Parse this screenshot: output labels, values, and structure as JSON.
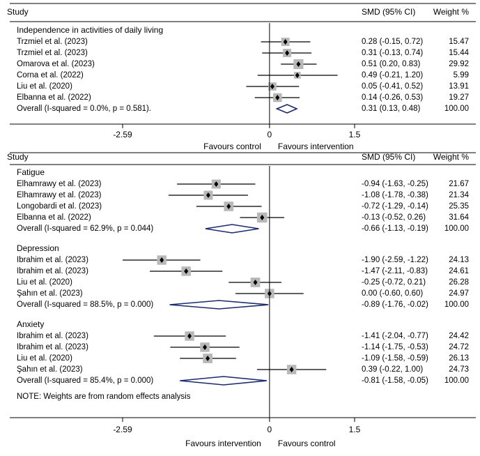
{
  "chart_data": [
    {
      "type": "forest",
      "axis": {
        "ticks": [
          -2.59,
          0,
          1.5
        ],
        "tick_labels": [
          "-2.59",
          "0",
          "1.5"
        ],
        "xlim": [
          -2.59,
          1.5
        ],
        "left_label": "Favours control",
        "right_label": "Favours intervention"
      },
      "header": {
        "study": "Study",
        "smd": "SMD (95% CI)",
        "weight": "Weight %"
      },
      "subgroups": [
        {
          "title": "Independence in activities of daily living",
          "studies": [
            {
              "study": "Trzmiel et al. (2023)",
              "smd": 0.28,
              "lo": -0.15,
              "hi": 0.72,
              "ci_text": "0.28 (-0.15, 0.72)",
              "weight": "15.47"
            },
            {
              "study": "Trzmiel et al. (2023)",
              "smd": 0.31,
              "lo": -0.13,
              "hi": 0.74,
              "ci_text": "0.31 (-0.13, 0.74)",
              "weight": "15.44"
            },
            {
              "study": "Omarova et al. (2023)",
              "smd": 0.51,
              "lo": 0.2,
              "hi": 0.83,
              "ci_text": "0.51 (0.20, 0.83)",
              "weight": "29.92"
            },
            {
              "study": "Corna et al. (2022)",
              "smd": 0.49,
              "lo": -0.21,
              "hi": 1.2,
              "ci_text": "0.49 (-0.21, 1.20)",
              "weight": "5.99"
            },
            {
              "study": "Liu et al. (2020)",
              "smd": 0.05,
              "lo": -0.41,
              "hi": 0.52,
              "ci_text": "0.05 (-0.41, 0.52)",
              "weight": "13.91"
            },
            {
              "study": "Elbanna et al. (2022)",
              "smd": 0.14,
              "lo": -0.26,
              "hi": 0.53,
              "ci_text": "0.14 (-0.26, 0.53)",
              "weight": "19.27"
            }
          ],
          "overall": {
            "label": "Overall  (I-squared = 0.0%, p = 0.581).",
            "smd": 0.31,
            "lo": 0.13,
            "hi": 0.48,
            "ci_text": "0.31 (0.13, 0.48)",
            "weight": "100.00"
          }
        }
      ]
    },
    {
      "type": "forest",
      "axis": {
        "ticks": [
          -2.59,
          0,
          1.5
        ],
        "tick_labels": [
          "-2.59",
          "0",
          "1.5"
        ],
        "xlim": [
          -2.59,
          1.5
        ],
        "left_label": "Favours intervention",
        "right_label": "Favours control"
      },
      "header": {
        "study": "Study",
        "smd": "SMD (95% CI)",
        "weight": "Weight %"
      },
      "subgroups": [
        {
          "title": "Fatigue",
          "studies": [
            {
              "study": "Elhamrawy et al. (2023)",
              "smd": -0.94,
              "lo": -1.63,
              "hi": -0.25,
              "ci_text": "-0.94 (-1.63, -0.25)",
              "weight": "21.67"
            },
            {
              "study": "Elhamrawy et al. (2023)",
              "smd": -1.08,
              "lo": -1.78,
              "hi": -0.38,
              "ci_text": "-1.08 (-1.78, -0.38)",
              "weight": "21.34"
            },
            {
              "study": "Longobardi et al. (2023)",
              "smd": -0.72,
              "lo": -1.29,
              "hi": -0.14,
              "ci_text": "-0.72 (-1.29, -0.14)",
              "weight": "25.35"
            },
            {
              "study": "Elbanna et al. (2022)",
              "smd": -0.13,
              "lo": -0.52,
              "hi": 0.26,
              "ci_text": "-0.13 (-0.52, 0.26)",
              "weight": "31.64"
            }
          ],
          "overall": {
            "label": "Overall  (I-squared = 62.9%, p = 0.044)",
            "smd": -0.66,
            "lo": -1.13,
            "hi": -0.19,
            "ci_text": "-0.66 (-1.13, -0.19)",
            "weight": "100.00"
          }
        },
        {
          "title": "Depression",
          "studies": [
            {
              "study": "Ibrahim et al. (2023)",
              "smd": -1.9,
              "lo": -2.59,
              "hi": -1.22,
              "ci_text": "-1.90 (-2.59, -1.22)",
              "weight": "24.13"
            },
            {
              "study": "Ibrahim et al. (2023)",
              "smd": -1.47,
              "lo": -2.11,
              "hi": -0.83,
              "ci_text": "-1.47 (-2.11, -0.83)",
              "weight": "24.61"
            },
            {
              "study": "Liu et al. (2020)",
              "smd": -0.25,
              "lo": -0.72,
              "hi": 0.21,
              "ci_text": "-0.25 (-0.72, 0.21)",
              "weight": "26.28"
            },
            {
              "study": "Şahın et al. (2023)",
              "smd": 0.0,
              "lo": -0.6,
              "hi": 0.6,
              "ci_text": "0.00 (-0.60, 0.60)",
              "weight": "24.97"
            }
          ],
          "overall": {
            "label": "Overall  (I-squared = 88.5%, p = 0.000)",
            "smd": -0.89,
            "lo": -1.76,
            "hi": -0.02,
            "ci_text": "-0.89 (-1.76, -0.02)",
            "weight": "100.00"
          }
        },
        {
          "title": "Anxiety",
          "studies": [
            {
              "study": "Ibrahim et al. (2023)",
              "smd": -1.41,
              "lo": -2.04,
              "hi": -0.77,
              "ci_text": "-1.41 (-2.04, -0.77)",
              "weight": "24.42"
            },
            {
              "study": "Ibrahim et al. (2023)",
              "smd": -1.14,
              "lo": -1.75,
              "hi": -0.53,
              "ci_text": "-1.14 (-1.75, -0.53)",
              "weight": "24.72"
            },
            {
              "study": "Liu et al. (2020)",
              "smd": -1.09,
              "lo": -1.58,
              "hi": -0.59,
              "ci_text": "-1.09 (-1.58, -0.59)",
              "weight": "26.13"
            },
            {
              "study": "Şahın et al. (2023)",
              "smd": 0.39,
              "lo": -0.22,
              "hi": 1.0,
              "ci_text": "0.39 (-0.22, 1.00)",
              "weight": "24.73"
            }
          ],
          "overall": {
            "label": "Overall  (I-squared = 85.4%, p = 0.000)",
            "smd": -0.81,
            "lo": -1.58,
            "hi": -0.05,
            "ci_text": "-0.81 (-1.58, -0.05)",
            "weight": "100.00"
          }
        }
      ],
      "note": "NOTE: Weights are from random effects analysis"
    }
  ]
}
